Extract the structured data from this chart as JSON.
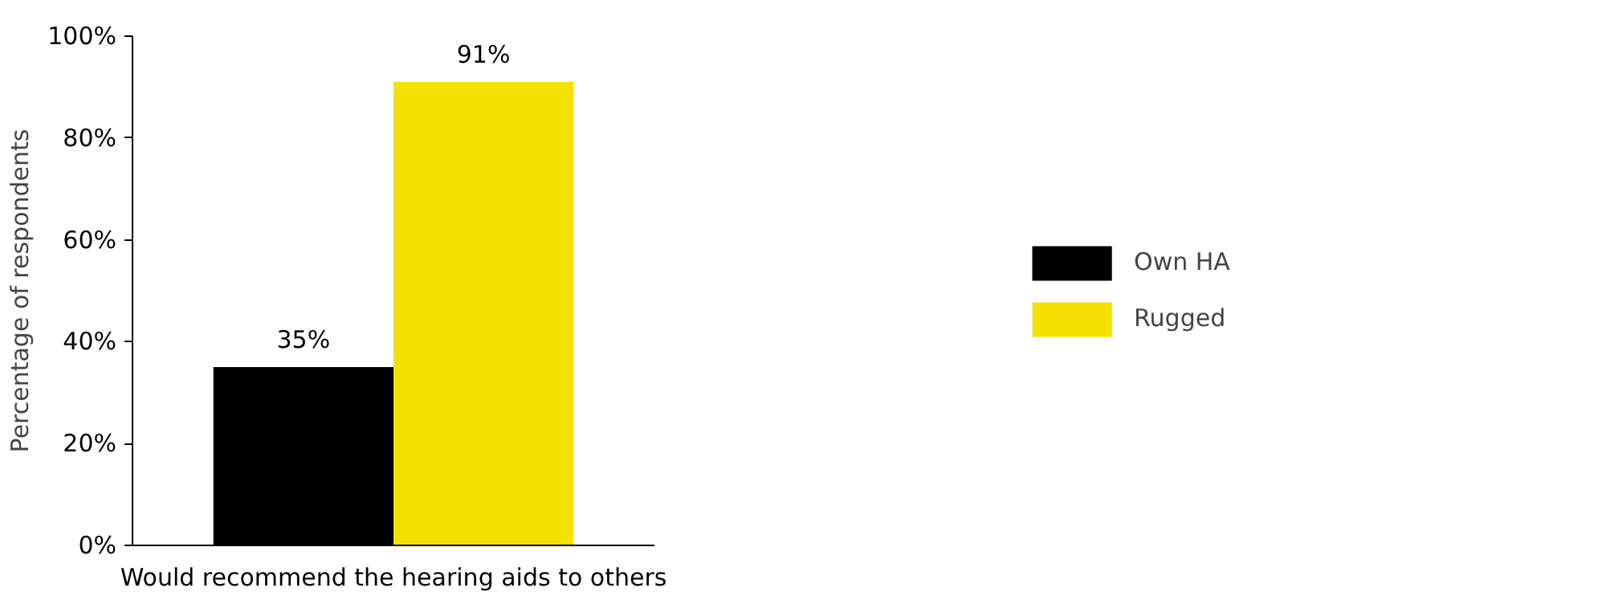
{
  "chart_data": {
    "type": "bar",
    "ylabel": "Percentage of respondents",
    "categories": [
      "Would recommend the hearing aids to others"
    ],
    "series": [
      {
        "name": "Own HA",
        "color": "#000000",
        "values": [
          35
        ],
        "value_labels": [
          "35%"
        ]
      },
      {
        "name": "Rugged",
        "color": "#f5e100",
        "values": [
          91
        ],
        "value_labels": [
          "91%"
        ]
      }
    ],
    "ylim": [
      0,
      100
    ],
    "yticks": [
      {
        "value": 0,
        "label": "0%"
      },
      {
        "value": 20,
        "label": "20%"
      },
      {
        "value": 40,
        "label": "40%"
      },
      {
        "value": 60,
        "label": "60%"
      },
      {
        "value": 80,
        "label": "80%"
      },
      {
        "value": 100,
        "label": "100%"
      }
    ],
    "grid": false,
    "legend": "right"
  }
}
